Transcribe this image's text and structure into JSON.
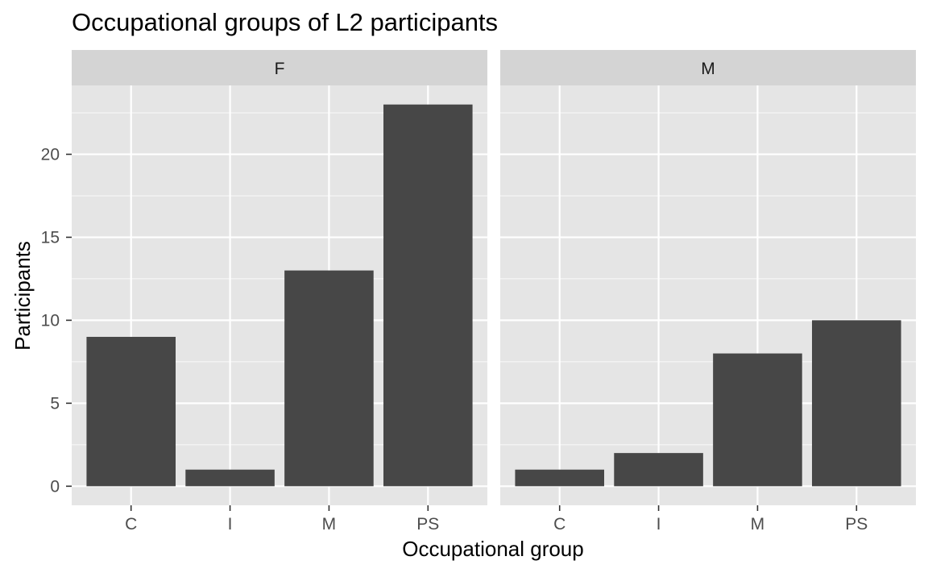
{
  "chart_data": {
    "type": "bar",
    "title": "Occupational groups of L2 participants",
    "xlabel": "Occupational group",
    "ylabel": "Participants",
    "categories": [
      "C",
      "I",
      "M",
      "PS"
    ],
    "y_ticks": [
      0,
      5,
      10,
      15,
      20
    ],
    "ylim": [
      -1.15,
      24.15
    ],
    "grid": true,
    "facets": [
      {
        "label": "F",
        "values": [
          9,
          1,
          13,
          23
        ]
      },
      {
        "label": "M",
        "values": [
          1,
          2,
          8,
          10
        ]
      }
    ]
  },
  "colors": {
    "bar": "#474747",
    "panel_bg": "#e5e5e5",
    "strip_bg": "#d4d4d4",
    "grid": "#ffffff"
  }
}
